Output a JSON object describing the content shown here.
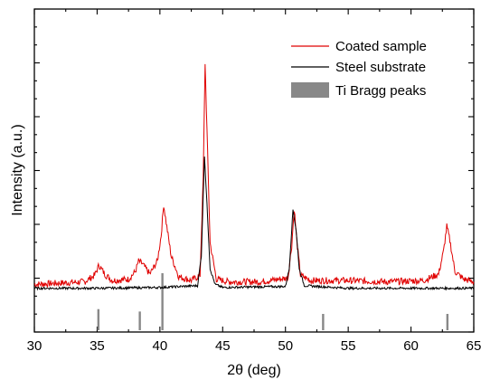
{
  "chart_data": {
    "type": "line",
    "xlabel": "2θ (deg)",
    "ylabel": "Intensity (a.u.)",
    "xlim": [
      30,
      65
    ],
    "ylim": [
      0,
      100
    ],
    "x_ticks": [
      30,
      35,
      40,
      45,
      50,
      55,
      60,
      65
    ],
    "y_ticks_labeled": false,
    "grid": false,
    "legend_position": "top-right",
    "series": [
      {
        "name": "Coated sample",
        "color": "#e00000",
        "points": [
          [
            30,
            9
          ],
          [
            32,
            9.5
          ],
          [
            34,
            10
          ],
          [
            34.8,
            12.5
          ],
          [
            35.15,
            16.5
          ],
          [
            35.6,
            13
          ],
          [
            36.2,
            10.5
          ],
          [
            37.5,
            11
          ],
          [
            38.05,
            14
          ],
          [
            38.3,
            18
          ],
          [
            38.6,
            17
          ],
          [
            39.2,
            13
          ],
          [
            39.8,
            18
          ],
          [
            40.1,
            28
          ],
          [
            40.3,
            40
          ],
          [
            40.5,
            33
          ],
          [
            40.9,
            20
          ],
          [
            41.5,
            12
          ],
          [
            42.5,
            10.5
          ],
          [
            43.2,
            12.5
          ],
          [
            43.45,
            50
          ],
          [
            43.6,
            95
          ],
          [
            43.8,
            60
          ],
          [
            44.0,
            25
          ],
          [
            44.5,
            11
          ],
          [
            45.5,
            10
          ],
          [
            48,
            10
          ],
          [
            50.2,
            11.5
          ],
          [
            50.5,
            24
          ],
          [
            50.7,
            38.5
          ],
          [
            50.9,
            26
          ],
          [
            51.2,
            12.5
          ],
          [
            52,
            10.5
          ],
          [
            55,
            10.5
          ],
          [
            58,
            10
          ],
          [
            61,
            10.5
          ],
          [
            62.2,
            13
          ],
          [
            62.6,
            22
          ],
          [
            62.85,
            31.5
          ],
          [
            63.1,
            26
          ],
          [
            63.5,
            14
          ],
          [
            64.2,
            11
          ],
          [
            65,
            10
          ]
        ]
      },
      {
        "name": "Steel substrate",
        "color": "#000000",
        "points": [
          [
            30,
            7.5
          ],
          [
            35,
            7.5
          ],
          [
            40,
            7.8
          ],
          [
            43.0,
            8.5
          ],
          [
            43.3,
            20
          ],
          [
            43.55,
            59
          ],
          [
            43.75,
            40
          ],
          [
            44.0,
            15
          ],
          [
            44.4,
            9
          ],
          [
            45,
            7.8
          ],
          [
            50,
            8.2
          ],
          [
            50.3,
            15
          ],
          [
            50.6,
            38
          ],
          [
            50.85,
            30
          ],
          [
            51.1,
            15
          ],
          [
            51.5,
            8.5
          ],
          [
            55,
            7.5
          ],
          [
            60,
            7.5
          ],
          [
            65,
            7.5
          ]
        ]
      }
    ],
    "bragg_peaks": {
      "name": "Ti Bragg peaks",
      "color": "#888888",
      "lines": [
        {
          "x": 35.1,
          "rel": 25
        },
        {
          "x": 38.4,
          "rel": 20
        },
        {
          "x": 40.2,
          "rel": 100
        },
        {
          "x": 53.0,
          "rel": 15
        },
        {
          "x": 62.9,
          "rel": 15
        }
      ]
    }
  }
}
